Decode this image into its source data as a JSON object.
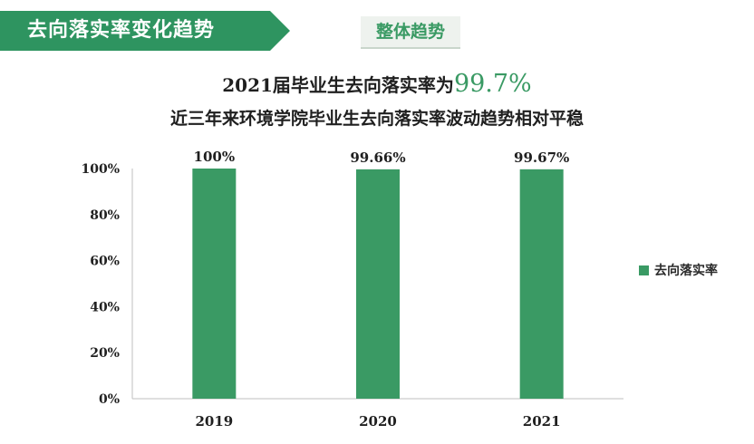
{
  "header": {
    "title": "去向落实率变化趋势",
    "tab_label": "整体趋势"
  },
  "headline": {
    "prefix": "2021届毕业生去向落实率为",
    "highlight": "99.7%",
    "subline": "近三年来环境学院毕业生去向落实率波动趋势相对平稳"
  },
  "colors": {
    "accent": "#3a9a64",
    "banner": "#2e9460"
  },
  "chart_data": {
    "type": "bar",
    "categories": [
      "2019",
      "2020",
      "2021"
    ],
    "series": [
      {
        "name": "去向落实率",
        "values": [
          100,
          99.66,
          99.67
        ]
      }
    ],
    "data_labels": [
      "100%",
      "99.66%",
      "99.67%"
    ],
    "yticks": [
      "0%",
      "20%",
      "40%",
      "60%",
      "80%",
      "100%"
    ],
    "ylim": [
      0,
      100
    ],
    "grid": false,
    "legend": "right"
  }
}
